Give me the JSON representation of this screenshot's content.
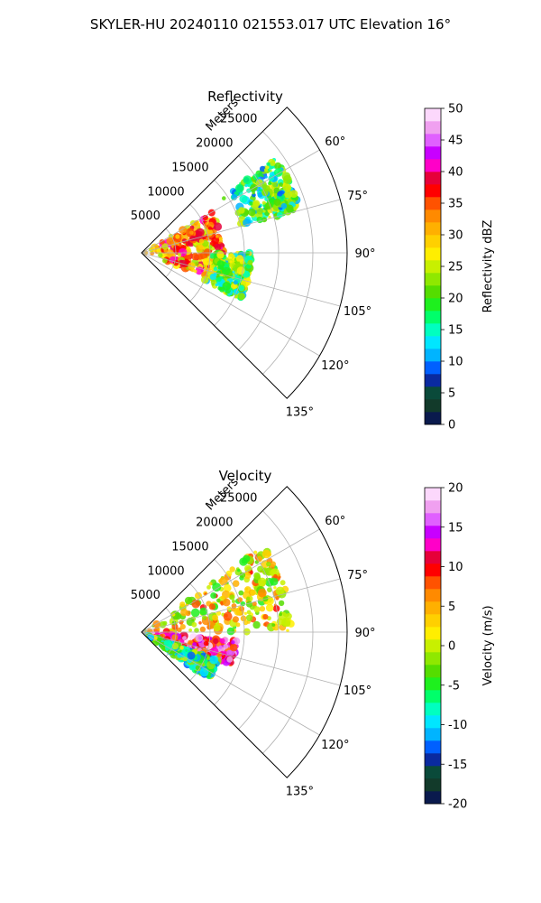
{
  "figure": {
    "title": "SKYLER-HU  20240110  021553.017 UTC Elevation 16°"
  },
  "chart_data": [
    {
      "type": "polar-sector",
      "title": "Reflectivity",
      "range_label": "Meters",
      "range_ticks": [
        5000,
        10000,
        15000,
        20000,
        25000
      ],
      "range_tick_labels": [
        "5000",
        "10000",
        "15000",
        "20000",
        "25000"
      ],
      "range_max": 30000,
      "azimuth_range_deg": [
        45,
        135
      ],
      "azimuth_ticks": [
        60,
        75,
        90,
        105,
        120,
        135
      ],
      "azimuth_tick_labels": [
        "60°",
        "75°",
        "90°",
        "105°",
        "120°",
        "135°"
      ],
      "grid": true,
      "colorbar": {
        "label": "Reflectivity dBZ",
        "min": 0,
        "max": 50,
        "ticks": [
          0,
          5,
          10,
          15,
          20,
          25,
          30,
          35,
          40,
          45,
          50
        ],
        "tick_labels": [
          "0",
          "5",
          "10",
          "15",
          "20",
          "25",
          "30",
          "35",
          "40",
          "45",
          "50"
        ],
        "colors": [
          "#0a1a4d",
          "#123a2a",
          "#0a4a3a",
          "#0a2aa0",
          "#0060ff",
          "#00b4ff",
          "#00e6ff",
          "#00ffc0",
          "#00ff6a",
          "#1ef01e",
          "#55dd00",
          "#8fe800",
          "#c8f000",
          "#ffee00",
          "#ffd000",
          "#ffb000",
          "#ff8a00",
          "#ff5200",
          "#ff0000",
          "#e6003a",
          "#ff00c8",
          "#c800ff",
          "#e060ff",
          "#f0a0f0",
          "#fcd8fc"
        ]
      },
      "field_summary": [
        {
          "azimuth_deg": [
            55,
            75
          ],
          "range_m": [
            14000,
            24000
          ],
          "value": 18
        },
        {
          "azimuth_deg": [
            60,
            110
          ],
          "range_m": [
            0,
            12000
          ],
          "value": 32
        },
        {
          "azimuth_deg": [
            90,
            115
          ],
          "range_m": [
            10000,
            16000
          ],
          "value": 20
        }
      ]
    },
    {
      "type": "polar-sector",
      "title": "Velocity",
      "range_label": "Meters",
      "range_ticks": [
        5000,
        10000,
        15000,
        20000,
        25000
      ],
      "range_tick_labels": [
        "5000",
        "10000",
        "15000",
        "20000",
        "25000"
      ],
      "range_max": 30000,
      "azimuth_range_deg": [
        45,
        135
      ],
      "azimuth_ticks": [
        60,
        75,
        90,
        105,
        120,
        135
      ],
      "azimuth_tick_labels": [
        "60°",
        "75°",
        "90°",
        "105°",
        "120°",
        "135°"
      ],
      "grid": true,
      "colorbar": {
        "label": "Velocity (m/s)",
        "min": -20,
        "max": 20,
        "ticks": [
          -20,
          -15,
          -10,
          -5,
          0,
          5,
          10,
          15,
          20
        ],
        "tick_labels": [
          "-20",
          "-15",
          "-10",
          "-5",
          "0",
          "5",
          "10",
          "15",
          "20"
        ],
        "colors": [
          "#0a1a4d",
          "#123a2a",
          "#0a4a3a",
          "#0a2aa0",
          "#0060ff",
          "#00b4ff",
          "#00e6ff",
          "#00ffc0",
          "#00ff6a",
          "#1ef01e",
          "#55dd00",
          "#8fe800",
          "#c8f000",
          "#ffee00",
          "#ffd000",
          "#ffb000",
          "#ff8a00",
          "#ff5200",
          "#ff0000",
          "#e6003a",
          "#ff00c8",
          "#c800ff",
          "#e060ff",
          "#f0a0f0",
          "#fcd8fc"
        ]
      },
      "field_summary": [
        {
          "azimuth_deg": [
            55,
            90
          ],
          "range_m": [
            0,
            22000
          ],
          "value": 2
        },
        {
          "azimuth_deg": [
            95,
            110
          ],
          "range_m": [
            0,
            14000
          ],
          "value": 12
        },
        {
          "azimuth_deg": [
            110,
            125
          ],
          "range_m": [
            0,
            12000
          ],
          "value": -6
        }
      ]
    }
  ]
}
